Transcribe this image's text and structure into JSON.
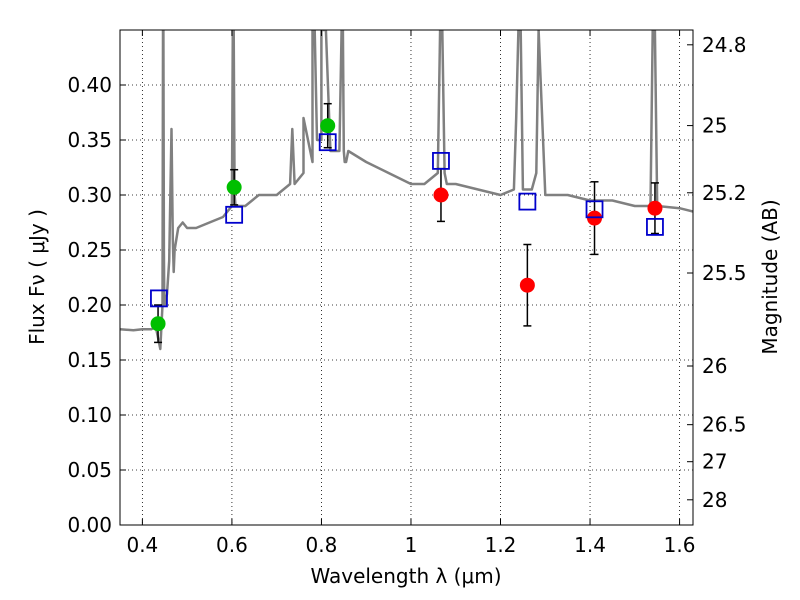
{
  "chart_data": {
    "type": "scatter",
    "xlabel": "Wavelength  λ (μm)",
    "ylabel": "Flux  Fν  ( μJy )",
    "ylabel_right": "Magnitude (AB)",
    "xlim": [
      0.35,
      1.63
    ],
    "ylim": [
      0.0,
      0.45
    ],
    "grid": true,
    "x_ticks": [
      {
        "value": 0.4,
        "label": "0.4"
      },
      {
        "value": 0.6,
        "label": "0.6"
      },
      {
        "value": 0.8,
        "label": "0.8"
      },
      {
        "value": 1.0,
        "label": "1"
      },
      {
        "value": 1.2,
        "label": "1.2"
      },
      {
        "value": 1.4,
        "label": "1.4"
      },
      {
        "value": 1.6,
        "label": "1.6"
      }
    ],
    "y_ticks": [
      {
        "value": 0.0,
        "label": "0.00"
      },
      {
        "value": 0.05,
        "label": "0.05"
      },
      {
        "value": 0.1,
        "label": "0.10"
      },
      {
        "value": 0.15,
        "label": "0.15"
      },
      {
        "value": 0.2,
        "label": "0.20"
      },
      {
        "value": 0.25,
        "label": "0.25"
      },
      {
        "value": 0.3,
        "label": "0.30"
      },
      {
        "value": 0.35,
        "label": "0.35"
      },
      {
        "value": 0.4,
        "label": "0.40"
      }
    ],
    "right_ticks": [
      {
        "value": 24.8,
        "label": "24.8"
      },
      {
        "value": 25.0,
        "label": "25"
      },
      {
        "value": 25.2,
        "label": "25.2"
      },
      {
        "value": 25.5,
        "label": "25.5"
      },
      {
        "value": 26.0,
        "label": "26"
      },
      {
        "value": 26.5,
        "label": "26.5"
      },
      {
        "value": 27.0,
        "label": "27"
      },
      {
        "value": 28.0,
        "label": "28"
      }
    ],
    "model_spectrum": {
      "color": "#808080",
      "x": [
        0.35,
        0.38,
        0.4,
        0.42,
        0.43,
        0.435,
        0.44,
        0.445,
        0.446,
        0.447,
        0.448,
        0.449,
        0.45,
        0.455,
        0.46,
        0.465,
        0.468,
        0.47,
        0.472,
        0.476,
        0.48,
        0.49,
        0.5,
        0.52,
        0.55,
        0.58,
        0.6,
        0.602,
        0.604,
        0.606,
        0.608,
        0.61,
        0.63,
        0.66,
        0.7,
        0.73,
        0.735,
        0.74,
        0.76,
        0.76,
        0.78,
        0.78,
        0.785,
        0.79,
        0.8,
        0.8,
        0.81,
        0.82,
        0.83,
        0.84,
        0.845,
        0.848,
        0.85,
        0.852,
        0.855,
        0.86,
        0.9,
        0.95,
        1.0,
        1.03,
        1.06,
        1.065,
        1.07,
        1.075,
        1.08,
        1.1,
        1.15,
        1.2,
        1.23,
        1.235,
        1.24,
        1.245,
        1.25,
        1.27,
        1.28,
        1.285,
        1.3,
        1.32,
        1.35,
        1.4,
        1.45,
        1.5,
        1.535,
        1.54,
        1.545,
        1.55,
        1.6,
        1.63
      ],
      "y": [
        0.178,
        0.177,
        0.178,
        0.178,
        0.18,
        0.17,
        0.16,
        0.2,
        0.45,
        0.45,
        0.25,
        0.2,
        0.2,
        0.21,
        0.24,
        0.36,
        0.26,
        0.23,
        0.25,
        0.26,
        0.27,
        0.275,
        0.27,
        0.27,
        0.275,
        0.28,
        0.29,
        0.45,
        0.45,
        0.3,
        0.29,
        0.29,
        0.29,
        0.3,
        0.3,
        0.31,
        0.36,
        0.31,
        0.32,
        0.37,
        0.33,
        0.45,
        0.45,
        0.35,
        0.35,
        0.45,
        0.45,
        0.34,
        0.34,
        0.34,
        0.45,
        0.45,
        0.34,
        0.33,
        0.33,
        0.34,
        0.33,
        0.32,
        0.31,
        0.31,
        0.32,
        0.45,
        0.45,
        0.32,
        0.31,
        0.31,
        0.305,
        0.3,
        0.305,
        0.37,
        0.45,
        0.45,
        0.305,
        0.305,
        0.32,
        0.45,
        0.3,
        0.3,
        0.3,
        0.295,
        0.295,
        0.29,
        0.29,
        0.45,
        0.45,
        0.29,
        0.288,
        0.285
      ]
    },
    "series": [
      {
        "marker": "circle",
        "color": "#00bf00",
        "points": [
          {
            "x": 0.435,
            "y": 0.183,
            "yerr": 0.017
          },
          {
            "x": 0.605,
            "y": 0.307,
            "yerr": 0.016
          },
          {
            "x": 0.814,
            "y": 0.363,
            "yerr": 0.02
          }
        ]
      },
      {
        "marker": "circle",
        "color": "#ff0000",
        "points": [
          {
            "x": 1.067,
            "y": 0.3,
            "yerr": 0.024
          },
          {
            "x": 1.26,
            "y": 0.218,
            "yerr": 0.037
          },
          {
            "x": 1.41,
            "y": 0.279,
            "yerr": 0.033
          },
          {
            "x": 1.545,
            "y": 0.288,
            "yerr": 0.023
          }
        ]
      },
      {
        "marker": "square-open",
        "color": "#0000cc",
        "points": [
          {
            "x": 0.437,
            "y": 0.206
          },
          {
            "x": 0.605,
            "y": 0.282
          },
          {
            "x": 0.814,
            "y": 0.348
          },
          {
            "x": 1.067,
            "y": 0.331
          },
          {
            "x": 1.26,
            "y": 0.294
          },
          {
            "x": 1.41,
            "y": 0.287
          },
          {
            "x": 1.545,
            "y": 0.271
          }
        ]
      }
    ]
  }
}
